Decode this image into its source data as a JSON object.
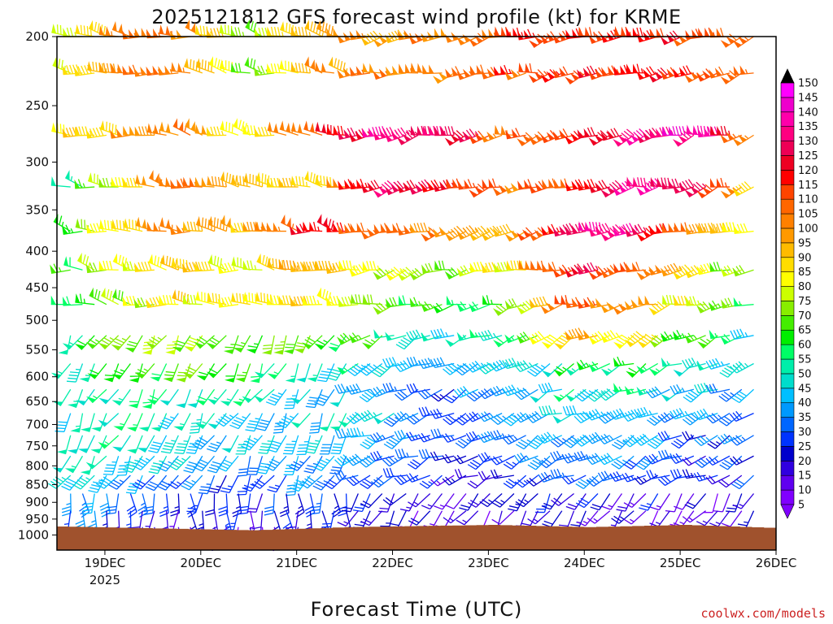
{
  "chart_data": {
    "type": "wind-barb-profile",
    "title": "2025121812 GFS forecast wind profile (kt) for KRME",
    "xlabel": "Forecast Time (UTC)",
    "ylabel": "",
    "credit": "coolwx.com/models",
    "x_range_hours": [
      -12,
      168
    ],
    "x_ticks": [
      {
        "hour": 0,
        "label": "19DEC",
        "sublabel": "2025"
      },
      {
        "hour": 24,
        "label": "20DEC",
        "sublabel": ""
      },
      {
        "hour": 48,
        "label": "21DEC",
        "sublabel": ""
      },
      {
        "hour": 72,
        "label": "22DEC",
        "sublabel": ""
      },
      {
        "hour": 96,
        "label": "23DEC",
        "sublabel": ""
      },
      {
        "hour": 120,
        "label": "24DEC",
        "sublabel": ""
      },
      {
        "hour": 144,
        "label": "25DEC",
        "sublabel": ""
      },
      {
        "hour": 168,
        "label": "26DEC",
        "sublabel": ""
      }
    ],
    "y_axis": {
      "scale": "log-pressure",
      "range_hpa": [
        1050,
        200
      ],
      "ticks_hpa": [
        200,
        250,
        300,
        350,
        400,
        450,
        500,
        550,
        600,
        650,
        700,
        750,
        800,
        850,
        900,
        950,
        1000
      ]
    },
    "levels_hpa": [
      200,
      225,
      275,
      325,
      375,
      425,
      475,
      525,
      575,
      625,
      675,
      725,
      775,
      825,
      875,
      925,
      975
    ],
    "time_step_hours": 3,
    "colorbar": {
      "units": "kt",
      "levels": [
        5,
        10,
        15,
        20,
        25,
        30,
        35,
        40,
        45,
        50,
        55,
        60,
        65,
        70,
        75,
        80,
        85,
        90,
        95,
        100,
        105,
        110,
        115,
        120,
        125,
        130,
        135,
        140,
        145,
        150
      ],
      "colors": [
        "#8000ff",
        "#6000f0",
        "#3000e0",
        "#0000cc",
        "#0033ff",
        "#0066ff",
        "#0099ff",
        "#00bfff",
        "#00ddcc",
        "#00eeaa",
        "#00ff66",
        "#00ee00",
        "#44ee00",
        "#88ee00",
        "#ccff00",
        "#ffff00",
        "#ffdd00",
        "#ffbb00",
        "#ff9900",
        "#ff8000",
        "#ff6600",
        "#ff4400",
        "#ff0000",
        "#ee0022",
        "#ee0055",
        "#ff0080",
        "#ff00aa",
        "#ee00cc",
        "#ff00ff",
        "#000000"
      ]
    },
    "terrain_color": "#a0522d",
    "sample_speeds_kt": [
      {
        "level": 200,
        "speeds": [
          70,
          105,
          105,
          70,
          100,
          100,
          100,
          110,
          115,
          120,
          110,
          115
        ]
      },
      {
        "level": 275,
        "speeds": [
          80,
          95,
          105,
          80,
          110,
          135,
          130,
          105,
          115,
          135,
          135,
          85
        ]
      },
      {
        "level": 325,
        "speeds": [
          40,
          85,
          115,
          90,
          85,
          130,
          125,
          100,
          115,
          140,
          120,
          80
        ]
      },
      {
        "level": 375,
        "speeds": [
          60,
          90,
          100,
          90,
          120,
          105,
          100,
          95,
          135,
          130,
          95,
          70
        ]
      },
      {
        "level": 425,
        "speeds": [
          55,
          80,
          90,
          80,
          100,
          80,
          70,
          85,
          125,
          105,
          80,
          60
        ]
      },
      {
        "level": 475,
        "speeds": [
          50,
          75,
          85,
          85,
          90,
          70,
          60,
          65,
          115,
          95,
          75,
          55
        ]
      },
      {
        "level": 525,
        "speeds": [
          50,
          70,
          75,
          70,
          65,
          60,
          45,
          55,
          95,
          85,
          60,
          45
        ]
      },
      {
        "level": 575,
        "speeds": [
          45,
          60,
          65,
          60,
          50,
          50,
          35,
          40,
          60,
          60,
          45,
          40
        ]
      },
      {
        "level": 625,
        "speeds": [
          45,
          55,
          55,
          50,
          45,
          40,
          30,
          40,
          50,
          50,
          40,
          35
        ]
      },
      {
        "level": 675,
        "speeds": [
          45,
          55,
          50,
          45,
          45,
          45,
          30,
          35,
          45,
          45,
          35,
          30
        ]
      },
      {
        "level": 725,
        "speeds": [
          50,
          50,
          45,
          40,
          45,
          40,
          30,
          35,
          40,
          40,
          30,
          30
        ]
      },
      {
        "level": 775,
        "speeds": [
          50,
          45,
          40,
          35,
          40,
          35,
          25,
          30,
          35,
          35,
          25,
          30
        ]
      },
      {
        "level": 825,
        "speeds": [
          45,
          40,
          30,
          30,
          35,
          30,
          20,
          25,
          30,
          30,
          20,
          30
        ]
      },
      {
        "level": 875,
        "speeds": [
          40,
          35,
          25,
          25,
          30,
          25,
          15,
          20,
          25,
          20,
          15,
          25
        ]
      },
      {
        "level": 925,
        "speeds": [
          35,
          25,
          20,
          20,
          25,
          20,
          10,
          15,
          20,
          15,
          10,
          20
        ]
      },
      {
        "level": 975,
        "speeds": [
          20,
          15,
          15,
          15,
          15,
          15,
          10,
          10,
          15,
          10,
          10,
          15
        ]
      }
    ]
  }
}
